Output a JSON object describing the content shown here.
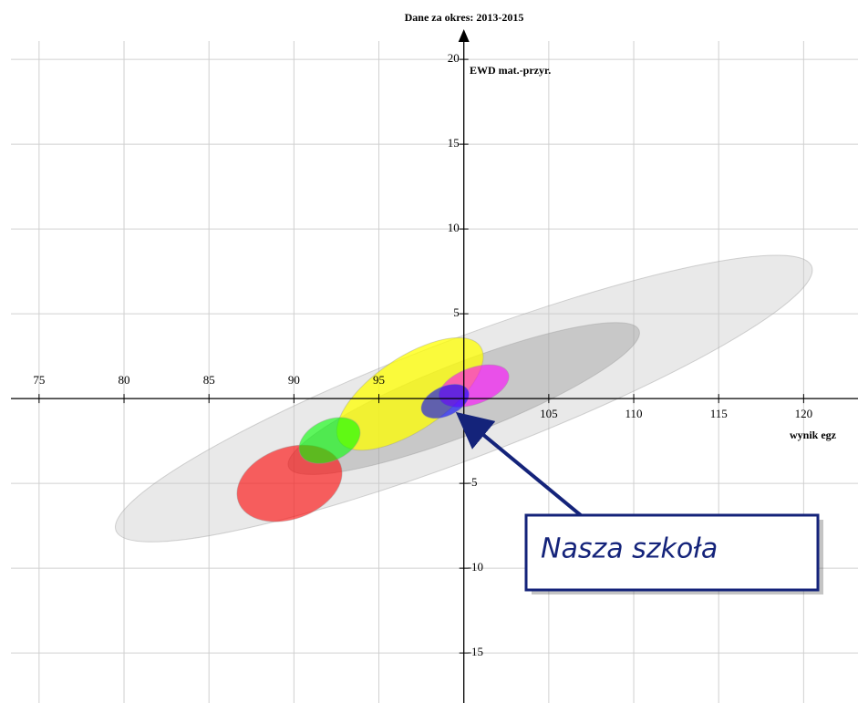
{
  "chart_data": {
    "type": "ellipse",
    "title": "Dane za okres: 2013-2015",
    "y_label": "EWD mat.-przyr.",
    "x_label": "wynik egz",
    "xlim": [
      72.7,
      123.2
    ],
    "ylim": [
      -17.95,
      23.5
    ],
    "xticks": [
      75,
      80,
      85,
      90,
      95,
      105,
      110,
      115,
      120
    ],
    "yticks": [
      20,
      15,
      10,
      5,
      -5,
      -10,
      -15
    ],
    "grid": true,
    "ellipses": [
      {
        "x": 100,
        "y": 0,
        "rx": 21.9,
        "ry": 3.5,
        "angle": 20.8,
        "color": "rgba(200,200,200,0.4)"
      },
      {
        "x": 100,
        "y": 0,
        "rx": 11.07,
        "ry": 2.1,
        "angle": 21.3,
        "color": "rgba(140,140,140,0.35)"
      },
      {
        "x": 96.83,
        "y": 0.27,
        "rx": 5.0,
        "ry": 2.15,
        "angle": 34,
        "color": "rgba(255,255,0,0.75)"
      },
      {
        "x": 89.74,
        "y": -5.0,
        "rx": 3.2,
        "ry": 2.1,
        "angle": 20,
        "color": "rgba(255,0,0,0.6)"
      },
      {
        "x": 92.1,
        "y": -2.47,
        "rx": 1.9,
        "ry": 1.2,
        "angle": 25,
        "color": "rgba(0,255,0,0.6)"
      },
      {
        "x": 100.6,
        "y": 0.75,
        "rx": 2.15,
        "ry": 1.07,
        "angle": 20,
        "color": "rgba(255,0,255,0.6)"
      },
      {
        "x": 98.9,
        "y": -0.16,
        "rx": 1.5,
        "ry": 0.86,
        "angle": 25,
        "color": "rgba(0,0,255,0.6)"
      }
    ],
    "annotation": {
      "text": "Nasza szkoła"
    }
  }
}
